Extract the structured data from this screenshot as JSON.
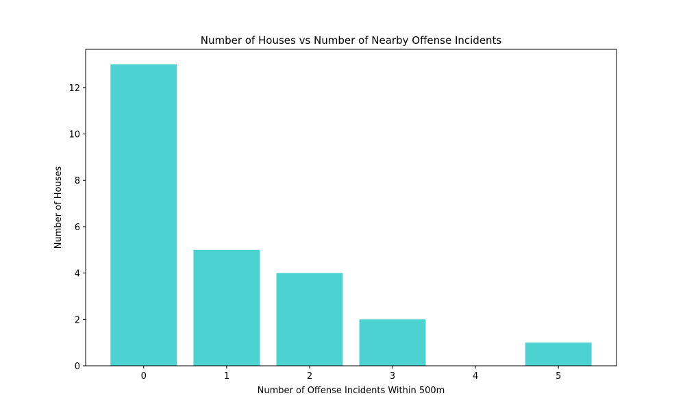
{
  "chart_data": {
    "type": "bar",
    "title": "Number of Houses vs Number of Nearby Offense Incidents",
    "xlabel": "Number of Offense Incidents Within 500m",
    "ylabel": "Number of Houses",
    "categories": [
      "0",
      "1",
      "2",
      "3",
      "4",
      "5"
    ],
    "values": [
      13,
      5,
      4,
      2,
      0,
      1
    ],
    "xlim": [
      -0.7,
      5.7
    ],
    "ylim": [
      0,
      13.65
    ],
    "yticks": [
      0,
      2,
      4,
      6,
      8,
      10,
      12
    ],
    "grid": false,
    "legend": "none",
    "bar_color": "#4dd2d2"
  }
}
